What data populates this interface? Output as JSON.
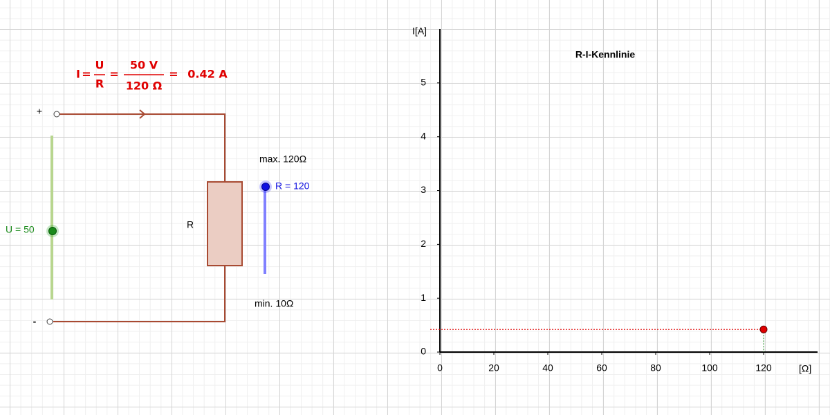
{
  "formula": {
    "lhs": "I",
    "eq1": "=",
    "num1": "U",
    "den1": "R",
    "eq2": "=",
    "num2": "50 V",
    "den2": "120 Ω",
    "eq3": "=",
    "result": "0.42 A"
  },
  "circuit": {
    "plus": "+",
    "minus": "-",
    "resistor": "R"
  },
  "sliders": {
    "u": {
      "label": "U = 50"
    },
    "r": {
      "label": "R = 120",
      "max": "max. 120Ω",
      "min": "min. 10Ω"
    }
  },
  "chart_data": {
    "type": "scatter",
    "title": "R-I-Kennlinie",
    "x_label": "[Ω]",
    "y_label": "I[A]",
    "xlim": [
      0,
      140
    ],
    "ylim": [
      0,
      6
    ],
    "xticks": [
      0,
      20,
      40,
      60,
      80,
      100,
      120
    ],
    "yticks": [
      0,
      1,
      2,
      3,
      4,
      5
    ],
    "series": [
      {
        "color": "#e00000",
        "x": [
          120
        ],
        "values": [
          0.42
        ]
      }
    ]
  }
}
